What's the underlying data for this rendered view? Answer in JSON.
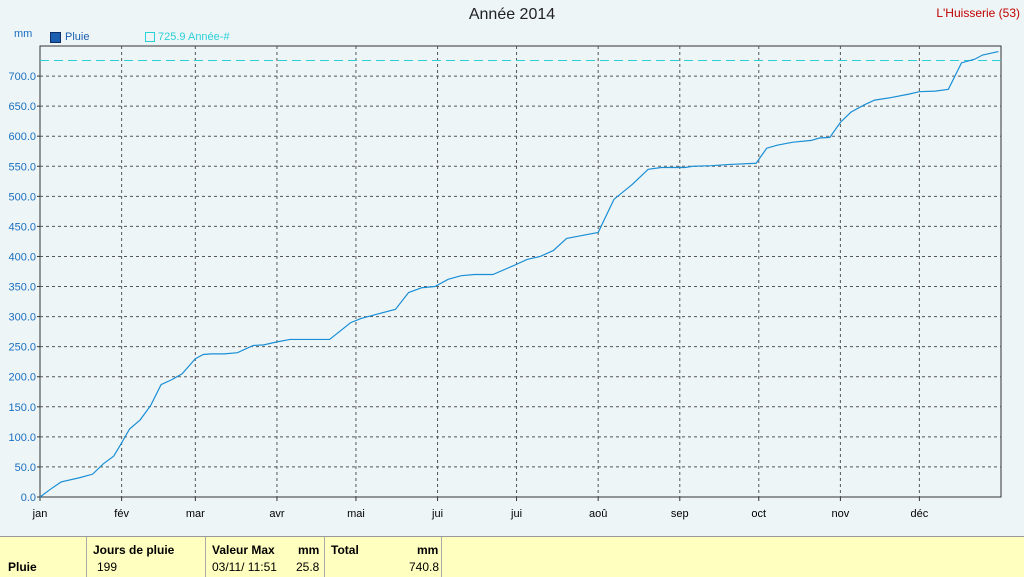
{
  "title": "Année 2014",
  "station": "L'Huisserie (53)",
  "unit": "mm",
  "legend": {
    "series1": "Pluie",
    "series2": "725.9 Année-#"
  },
  "colors": {
    "line": "#1a8fd6",
    "ref": "#2ad0d8",
    "grid": "#555555"
  },
  "chart_data": {
    "type": "line",
    "title": "Année 2014",
    "ylabel": "mm",
    "ylim": [
      0,
      750
    ],
    "yticks": [
      "0.0",
      "50.0",
      "100.0",
      "150.0",
      "200.0",
      "250.0",
      "300.0",
      "350.0",
      "400.0",
      "450.0",
      "500.0",
      "550.0",
      "600.0",
      "650.0",
      "700.0"
    ],
    "xticks": [
      "jan",
      "fév",
      "mar",
      "avr",
      "mai",
      "jui",
      "jui",
      "aoû",
      "sep",
      "oct",
      "nov",
      "déc"
    ],
    "grid": true,
    "reference_line": {
      "label": "725.9 Année-#",
      "value": 725.9
    },
    "series": [
      {
        "name": "Pluie",
        "x_day": [
          0,
          4,
          8,
          15,
          20,
          24,
          28,
          31,
          34,
          38,
          42,
          46,
          50,
          54,
          59,
          62,
          65,
          70,
          75,
          81,
          85,
          90,
          95,
          102,
          110,
          118,
          122,
          128,
          135,
          140,
          145,
          150,
          155,
          160,
          165,
          172,
          180,
          185,
          190,
          195,
          200,
          206,
          212,
          218,
          225,
          231,
          236,
          240,
          245,
          248,
          255,
          262,
          272,
          276,
          280,
          286,
          293,
          296,
          300,
          304,
          308,
          313,
          317,
          323,
          330,
          334,
          340,
          345,
          350,
          355,
          358,
          364
        ],
        "y": [
          0,
          13,
          25,
          32,
          38,
          55,
          68,
          90,
          113,
          128,
          152,
          187,
          195,
          205,
          230,
          237,
          238,
          238,
          240,
          252,
          253,
          258,
          262,
          262,
          262,
          290,
          297,
          304,
          312,
          340,
          348,
          350,
          362,
          368,
          370,
          370,
          385,
          395,
          400,
          410,
          430,
          435,
          440,
          495,
          520,
          545,
          548,
          548,
          548,
          550,
          551,
          553,
          555,
          580,
          585,
          590,
          593,
          597,
          598,
          623,
          640,
          652,
          660,
          664,
          670,
          674,
          675,
          678,
          722,
          728,
          735,
          740.8
        ]
      }
    ]
  },
  "table": {
    "row_label": "Pluie",
    "jours_header": "Jours de pluie",
    "jours_value": "199",
    "valmax_header": "Valeur Max",
    "valmax_unit": "mm",
    "valmax_date": "03/11/  11:51",
    "valmax_value": "25.8",
    "total_header": "Total",
    "total_unit": "mm",
    "total_value": "740.8"
  }
}
